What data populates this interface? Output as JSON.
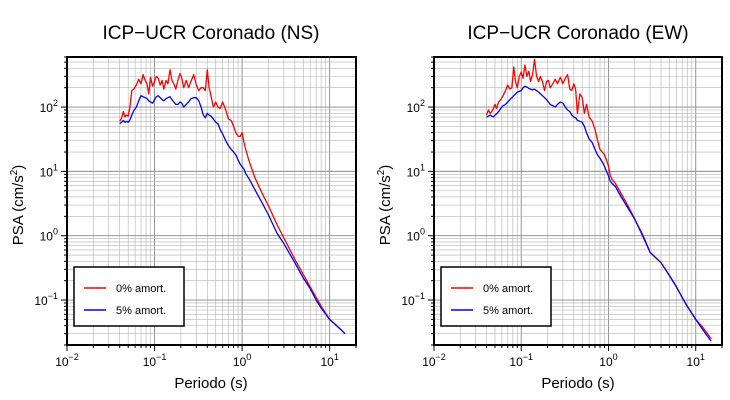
{
  "chart_data": [
    {
      "type": "line",
      "title": "ICP−UCR Coronado (NS)",
      "xlabel": "Periodo (s)",
      "ylabel": "PSA (cm/s²)",
      "xscale": "log",
      "yscale": "log",
      "xlim": [
        0.01,
        20
      ],
      "ylim": [
        0.02,
        600
      ],
      "grid": true,
      "legend_position": "bottom-left",
      "x_tick_labels": [
        {
          "value": 0.01,
          "base": "10",
          "exp": "−2"
        },
        {
          "value": 0.1,
          "base": "10",
          "exp": "−1"
        },
        {
          "value": 1,
          "base": "10",
          "exp": "0"
        },
        {
          "value": 10,
          "base": "10",
          "exp": "1"
        }
      ],
      "y_tick_labels": [
        {
          "value": 100,
          "base": "10",
          "exp": "2"
        },
        {
          "value": 10,
          "base": "10",
          "exp": "1"
        },
        {
          "value": 1,
          "base": "10",
          "exp": "0"
        },
        {
          "value": 0.1,
          "base": "10",
          "exp": "−1"
        }
      ],
      "series": [
        {
          "name": "0% amort.",
          "color": "#ff0000",
          "x": [
            0.04,
            0.042,
            0.044,
            0.046,
            0.048,
            0.05,
            0.052,
            0.055,
            0.058,
            0.062,
            0.066,
            0.07,
            0.074,
            0.078,
            0.082,
            0.086,
            0.09,
            0.095,
            0.1,
            0.105,
            0.11,
            0.116,
            0.122,
            0.128,
            0.135,
            0.142,
            0.15,
            0.158,
            0.166,
            0.175,
            0.185,
            0.195,
            0.205,
            0.215,
            0.23,
            0.245,
            0.26,
            0.28,
            0.3,
            0.32,
            0.34,
            0.36,
            0.38,
            0.4,
            0.42,
            0.44,
            0.47,
            0.5,
            0.53,
            0.56,
            0.6,
            0.65,
            0.7,
            0.75,
            0.8,
            0.85,
            0.9,
            0.95,
            1.0,
            1.05,
            1.1,
            1.2,
            1.4,
            1.7,
            2.0,
            2.5,
            3.0,
            4.0,
            5.0,
            6.0,
            7.0,
            8.0,
            10.0,
            12.0,
            15.0
          ],
          "y": [
            60,
            68,
            85,
            70,
            75,
            72,
            95,
            180,
            190,
            220,
            270,
            230,
            320,
            260,
            230,
            160,
            290,
            210,
            250,
            300,
            280,
            220,
            260,
            190,
            260,
            230,
            380,
            260,
            230,
            190,
            260,
            330,
            280,
            200,
            260,
            200,
            250,
            320,
            220,
            180,
            200,
            200,
            180,
            380,
            200,
            150,
            100,
            120,
            100,
            95,
            120,
            90,
            65,
            62,
            50,
            40,
            35,
            35,
            40,
            28,
            22,
            14.6,
            8,
            4.5,
            2.9,
            1.5,
            0.92,
            0.43,
            0.25,
            0.16,
            0.11,
            0.08,
            0.05,
            0.04,
            0.03
          ]
        },
        {
          "name": "5% amort.",
          "color": "#0000ff",
          "x": [
            0.04,
            0.042,
            0.044,
            0.046,
            0.048,
            0.05,
            0.052,
            0.055,
            0.058,
            0.062,
            0.066,
            0.07,
            0.074,
            0.078,
            0.082,
            0.086,
            0.09,
            0.095,
            0.1,
            0.105,
            0.11,
            0.116,
            0.122,
            0.128,
            0.135,
            0.142,
            0.15,
            0.158,
            0.166,
            0.175,
            0.185,
            0.195,
            0.205,
            0.215,
            0.23,
            0.245,
            0.26,
            0.28,
            0.3,
            0.32,
            0.34,
            0.36,
            0.38,
            0.4,
            0.42,
            0.44,
            0.47,
            0.5,
            0.53,
            0.56,
            0.6,
            0.65,
            0.7,
            0.75,
            0.8,
            0.85,
            0.9,
            0.95,
            1.0,
            1.05,
            1.1,
            1.2,
            1.4,
            1.7,
            2.0,
            2.5,
            3.0,
            4.0,
            5.0,
            6.0,
            7.0,
            8.0,
            10.0,
            12.0,
            15.0
          ],
          "y": [
            55,
            58,
            62,
            58,
            60,
            58,
            62,
            75,
            88,
            100,
            125,
            150,
            145,
            140,
            135,
            125,
            120,
            115,
            130,
            145,
            150,
            140,
            130,
            125,
            135,
            140,
            145,
            130,
            120,
            110,
            110,
            120,
            115,
            100,
            110,
            120,
            135,
            140,
            140,
            125,
            100,
            75,
            68,
            80,
            75,
            72,
            65,
            58,
            55,
            45,
            38,
            30,
            25,
            22,
            20,
            18,
            15,
            13,
            11.8,
            10.8,
            9.2,
            7.7,
            5.2,
            3.2,
            2.1,
            1.1,
            0.75,
            0.38,
            0.22,
            0.15,
            0.1,
            0.075,
            0.05,
            0.04,
            0.03
          ]
        }
      ]
    },
    {
      "type": "line",
      "title": "ICP−UCR Coronado (EW)",
      "xlabel": "Periodo (s)",
      "ylabel": "PSA (cm/s²)",
      "xscale": "log",
      "yscale": "log",
      "xlim": [
        0.01,
        20
      ],
      "ylim": [
        0.02,
        600
      ],
      "grid": true,
      "legend_position": "bottom-left",
      "x_tick_labels": [
        {
          "value": 0.01,
          "base": "10",
          "exp": "−2"
        },
        {
          "value": 0.1,
          "base": "10",
          "exp": "−1"
        },
        {
          "value": 1,
          "base": "10",
          "exp": "0"
        },
        {
          "value": 10,
          "base": "10",
          "exp": "1"
        }
      ],
      "y_tick_labels": [
        {
          "value": 100,
          "base": "10",
          "exp": "2"
        },
        {
          "value": 10,
          "base": "10",
          "exp": "1"
        },
        {
          "value": 1,
          "base": "10",
          "exp": "0"
        },
        {
          "value": 0.1,
          "base": "10",
          "exp": "−1"
        }
      ],
      "series": [
        {
          "name": "0% amort.",
          "color": "#ff0000",
          "x": [
            0.04,
            0.042,
            0.044,
            0.046,
            0.048,
            0.05,
            0.052,
            0.055,
            0.058,
            0.062,
            0.066,
            0.07,
            0.074,
            0.078,
            0.082,
            0.086,
            0.09,
            0.095,
            0.1,
            0.105,
            0.11,
            0.116,
            0.122,
            0.128,
            0.135,
            0.142,
            0.15,
            0.158,
            0.166,
            0.175,
            0.185,
            0.195,
            0.205,
            0.215,
            0.23,
            0.245,
            0.26,
            0.28,
            0.3,
            0.32,
            0.34,
            0.36,
            0.38,
            0.4,
            0.42,
            0.44,
            0.47,
            0.5,
            0.53,
            0.56,
            0.6,
            0.65,
            0.7,
            0.75,
            0.8,
            0.85,
            0.9,
            0.95,
            1.0,
            1.05,
            1.1,
            1.2,
            1.4,
            1.7,
            2.0,
            2.5,
            3.0,
            4.0,
            5.0,
            6.0,
            7.0,
            8.0,
            10.0,
            12.0,
            15.0
          ],
          "y": [
            75,
            90,
            80,
            85,
            95,
            110,
            95,
            120,
            130,
            150,
            180,
            220,
            190,
            200,
            420,
            250,
            200,
            300,
            350,
            280,
            450,
            300,
            360,
            250,
            320,
            550,
            300,
            250,
            300,
            250,
            180,
            250,
            260,
            200,
            230,
            270,
            230,
            290,
            230,
            280,
            320,
            190,
            180,
            230,
            190,
            80,
            160,
            140,
            80,
            110,
            70,
            60,
            45,
            30,
            22,
            20,
            18,
            15,
            12,
            8.5,
            7.5,
            6.5,
            4.5,
            2.8,
            1.8,
            1.0,
            0.55,
            0.38,
            0.24,
            0.16,
            0.11,
            0.08,
            0.05,
            0.038,
            0.025
          ]
        },
        {
          "name": "5% amort.",
          "color": "#0000ff",
          "x": [
            0.04,
            0.042,
            0.044,
            0.046,
            0.048,
            0.05,
            0.052,
            0.055,
            0.058,
            0.062,
            0.066,
            0.07,
            0.074,
            0.078,
            0.082,
            0.086,
            0.09,
            0.095,
            0.1,
            0.105,
            0.11,
            0.116,
            0.122,
            0.128,
            0.135,
            0.142,
            0.15,
            0.158,
            0.166,
            0.175,
            0.185,
            0.195,
            0.205,
            0.215,
            0.23,
            0.245,
            0.26,
            0.28,
            0.3,
            0.32,
            0.34,
            0.36,
            0.38,
            0.4,
            0.42,
            0.44,
            0.47,
            0.5,
            0.53,
            0.56,
            0.6,
            0.65,
            0.7,
            0.75,
            0.8,
            0.85,
            0.9,
            0.95,
            1.0,
            1.05,
            1.1,
            1.2,
            1.4,
            1.7,
            2.0,
            2.5,
            3.0,
            4.0,
            5.0,
            6.0,
            7.0,
            8.0,
            10.0,
            12.0,
            15.0
          ],
          "y": [
            70,
            72,
            75,
            72,
            70,
            75,
            78,
            85,
            95,
            105,
            110,
            120,
            130,
            140,
            150,
            160,
            170,
            175,
            180,
            200,
            210,
            205,
            195,
            190,
            185,
            190,
            180,
            170,
            160,
            150,
            140,
            130,
            120,
            110,
            105,
            100,
            110,
            120,
            115,
            100,
            90,
            85,
            75,
            70,
            68,
            62,
            60,
            58,
            50,
            40,
            32,
            28,
            22,
            18,
            16,
            14,
            12,
            10,
            8.5,
            7,
            6.5,
            5.8,
            4,
            2.6,
            1.8,
            0.95,
            0.55,
            0.38,
            0.24,
            0.16,
            0.11,
            0.08,
            0.05,
            0.035,
            0.023
          ]
        }
      ]
    }
  ]
}
